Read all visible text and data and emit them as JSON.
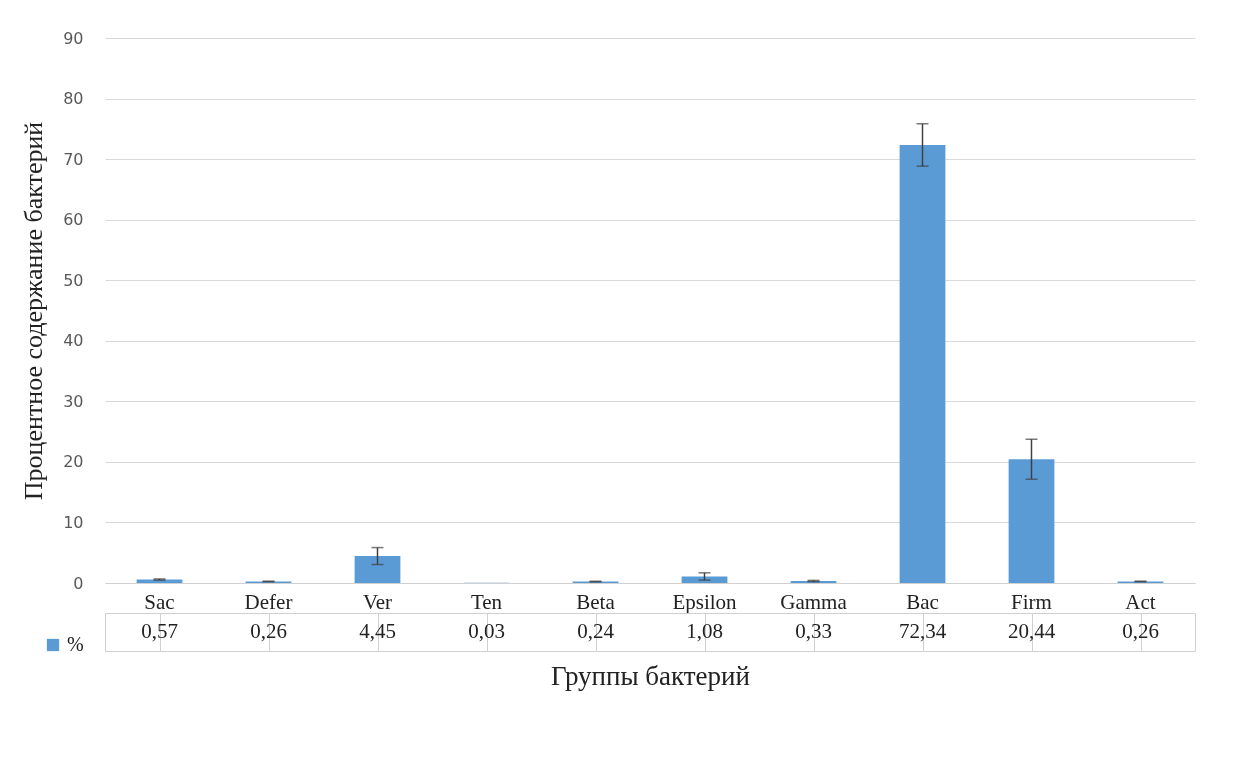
{
  "chart_data": {
    "type": "bar",
    "xlabel": "Группы бактерий",
    "ylabel": "Процентное содержание бактерий",
    "categories": [
      "Sac",
      "Defer",
      "Ver",
      "Ten",
      "Beta",
      "Epsilon",
      "Gamma",
      "Bac",
      "Firm",
      "Act"
    ],
    "series": [
      {
        "name": "%",
        "color": "#5b9bd5",
        "values": [
          0.57,
          0.26,
          4.45,
          0.03,
          0.24,
          1.08,
          0.33,
          72.34,
          20.44,
          0.26
        ],
        "value_labels": [
          "0,57",
          "0,26",
          "4,45",
          "0,03",
          "0,24",
          "1,08",
          "0,33",
          "72,34",
          "20,44",
          "0,26"
        ],
        "errors": [
          0.1,
          0.05,
          1.4,
          null,
          0.05,
          0.6,
          0.1,
          3.5,
          3.3,
          0.05
        ]
      }
    ],
    "ylim": [
      0,
      90
    ],
    "yticks": [
      0,
      10,
      20,
      30,
      40,
      50,
      60,
      70,
      80,
      90
    ],
    "grid": "y",
    "legend": "bottom left"
  }
}
